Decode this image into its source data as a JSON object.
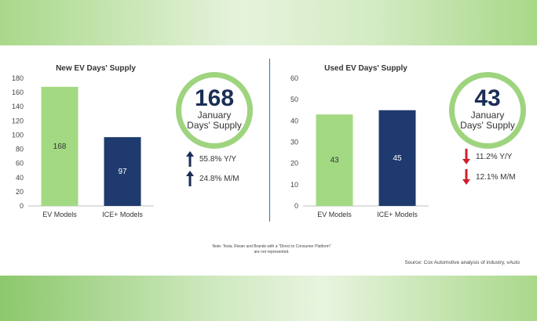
{
  "chart_data": [
    {
      "type": "bar",
      "title": "New EV Days' Supply",
      "categories": [
        "EV Models",
        "ICE+ Models"
      ],
      "values": [
        168,
        97
      ],
      "data_labels": [
        "168",
        "97"
      ],
      "ylim": [
        0,
        180
      ],
      "yticks": [
        "0",
        "20",
        "40",
        "60",
        "80",
        "100",
        "120",
        "140",
        "160",
        "180"
      ],
      "colors": [
        "#a3d982",
        "#1f3a6e"
      ],
      "label_colors": [
        "#333333",
        "#ffffff"
      ],
      "grid": false
    },
    {
      "type": "bar",
      "title": "Used EV Days' Supply",
      "categories": [
        "EV Models",
        "ICE+ Models"
      ],
      "values": [
        43,
        45
      ],
      "data_labels": [
        "43",
        "45"
      ],
      "ylim": [
        0,
        60
      ],
      "yticks": [
        "0",
        "10",
        "20",
        "30",
        "40",
        "50",
        "60"
      ],
      "colors": [
        "#a3d982",
        "#1f3a6e"
      ],
      "label_colors": [
        "#333333",
        "#ffffff"
      ],
      "grid": false
    }
  ],
  "new_ev": {
    "big": "168",
    "line1": "January",
    "line2": "Days' Supply",
    "stat1": "55.8% Y/Y",
    "stat2": "24.8% M/M",
    "arrow_color": "#1b2f55",
    "arrow_icon": "up-arrow-icon"
  },
  "used_ev": {
    "big": "43",
    "line1": "January",
    "line2": "Days' Supply",
    "stat1": "11.2% Y/Y",
    "stat2": "12.1% M/M",
    "arrow_color": "#d0202a",
    "arrow_icon": "down-arrow-icon"
  },
  "note": "Note: Tesla, Rivian and Brands with a \"Direct to Consumer Platform\" are not represented.",
  "source": "Source: Cox Automotive analysis of industry, vAuto"
}
